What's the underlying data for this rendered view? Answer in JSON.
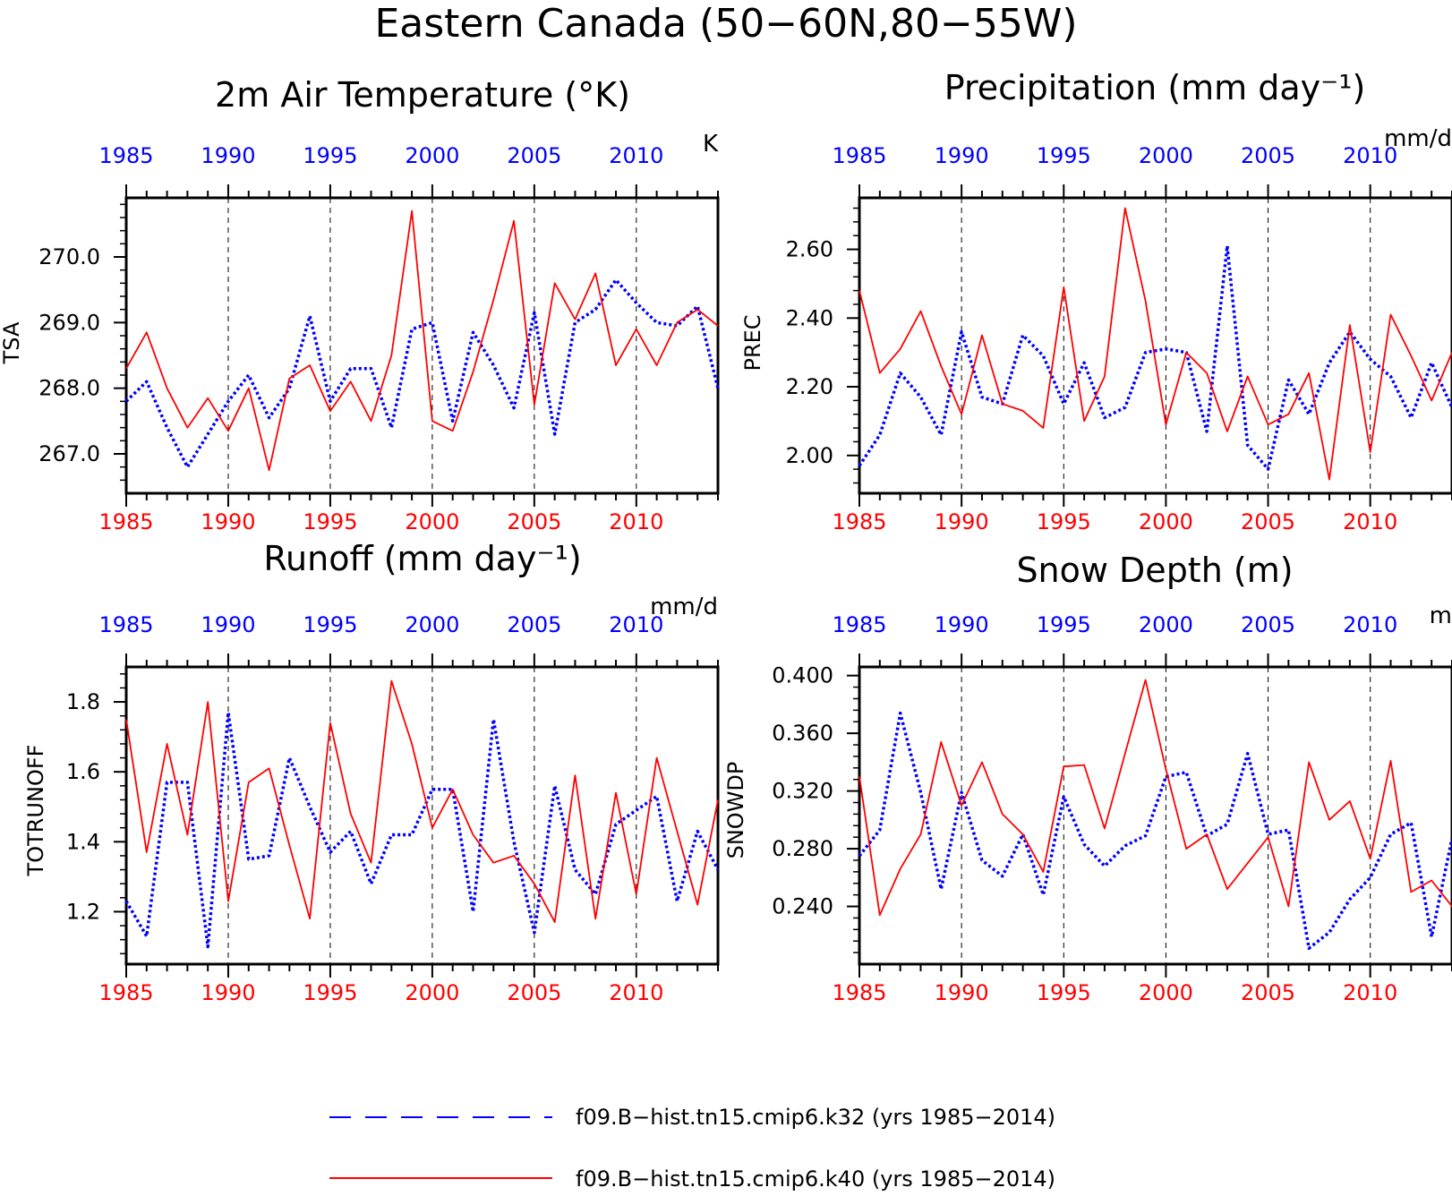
{
  "figure": {
    "title": "Eastern Canada (50−60N,80−55W)",
    "colors": {
      "k32": "#0000ff",
      "k40": "#ff0000",
      "axis": "#000000"
    }
  },
  "chart_data": [
    {
      "id": "tsa",
      "type": "line",
      "title": "2m Air Temperature (°K)",
      "ylabel": "TSA",
      "units": "K",
      "xlim": [
        1985,
        2014
      ],
      "ylim": [
        266.4,
        270.9
      ],
      "yticks": [
        267.0,
        268.0,
        269.0,
        270.0
      ],
      "ytick_labels": [
        "267.0",
        "268.0",
        "269.0",
        "270.0"
      ],
      "yminor_step": 0.2,
      "xticks": [
        1985,
        1990,
        1995,
        2000,
        2005,
        2010
      ],
      "x": [
        1985,
        1986,
        1987,
        1988,
        1989,
        1990,
        1991,
        1992,
        1993,
        1994,
        1995,
        1996,
        1997,
        1998,
        1999,
        2000,
        2001,
        2002,
        2003,
        2004,
        2005,
        2006,
        2007,
        2008,
        2009,
        2010,
        2011,
        2012,
        2013,
        2014
      ],
      "series": [
        {
          "name": "f09.B−hist.tn15.cmip6.k32 (yrs 1985−2014)",
          "key": "k32",
          "values": [
            267.8,
            268.1,
            267.4,
            266.8,
            267.3,
            267.8,
            268.2,
            267.55,
            268.0,
            269.1,
            267.8,
            268.3,
            268.3,
            267.4,
            268.9,
            269.0,
            267.5,
            268.85,
            268.35,
            267.7,
            269.15,
            267.3,
            269.0,
            269.2,
            269.65,
            269.3,
            269.0,
            268.95,
            269.25,
            268.0
          ]
        },
        {
          "name": "f09.B−hist.tn15.cmip6.k40 (yrs 1985−2014)",
          "key": "k40",
          "values": [
            268.3,
            268.85,
            268.0,
            267.4,
            267.85,
            267.35,
            268.0,
            266.75,
            268.15,
            268.35,
            267.65,
            268.1,
            267.5,
            268.5,
            270.7,
            267.5,
            267.35,
            268.25,
            269.35,
            270.55,
            267.75,
            269.6,
            269.05,
            269.75,
            268.35,
            268.9,
            268.35,
            269.0,
            269.2,
            268.95
          ]
        }
      ]
    },
    {
      "id": "prec",
      "type": "line",
      "title": "Precipitation (mm day⁻¹)",
      "ylabel": "PREC",
      "units": "mm/d",
      "xlim": [
        1985,
        2014
      ],
      "ylim": [
        1.89,
        2.75
      ],
      "yticks": [
        2.0,
        2.2,
        2.4,
        2.6
      ],
      "ytick_labels": [
        "2.00",
        "2.20",
        "2.40",
        "2.60"
      ],
      "yminor_step": 0.04,
      "xticks": [
        1985,
        1990,
        1995,
        2000,
        2005,
        2010
      ],
      "x": [
        1985,
        1986,
        1987,
        1988,
        1989,
        1990,
        1991,
        1992,
        1993,
        1994,
        1995,
        1996,
        1997,
        1998,
        1999,
        2000,
        2001,
        2002,
        2003,
        2004,
        2005,
        2006,
        2007,
        2008,
        2009,
        2010,
        2011,
        2012,
        2013,
        2014
      ],
      "series": [
        {
          "name": "f09.B−hist.tn15.cmip6.k32 (yrs 1985−2014)",
          "key": "k32",
          "values": [
            1.97,
            2.06,
            2.24,
            2.17,
            2.06,
            2.36,
            2.17,
            2.15,
            2.35,
            2.29,
            2.15,
            2.27,
            2.11,
            2.14,
            2.3,
            2.31,
            2.3,
            2.07,
            2.61,
            2.03,
            1.96,
            2.22,
            2.12,
            2.27,
            2.36,
            2.28,
            2.23,
            2.11,
            2.27,
            2.14
          ]
        },
        {
          "name": "f09.B−hist.tn15.cmip6.k40 (yrs 1985−2014)",
          "key": "k40",
          "values": [
            2.48,
            2.24,
            2.31,
            2.42,
            2.26,
            2.12,
            2.35,
            2.15,
            2.13,
            2.08,
            2.49,
            2.1,
            2.23,
            2.72,
            2.45,
            2.09,
            2.3,
            2.24,
            2.07,
            2.23,
            2.09,
            2.12,
            2.24,
            1.93,
            2.38,
            2.01,
            2.41,
            2.29,
            2.16,
            2.3
          ]
        }
      ]
    },
    {
      "id": "runoff",
      "type": "line",
      "title": "Runoff (mm day⁻¹)",
      "ylabel": "TOTRUNOFF",
      "units": "mm/d",
      "xlim": [
        1985,
        2014
      ],
      "ylim": [
        1.05,
        1.9
      ],
      "yticks": [
        1.2,
        1.4,
        1.6,
        1.8
      ],
      "ytick_labels": [
        "1.2",
        "1.4",
        "1.6",
        "1.8"
      ],
      "yminor_step": 0.04,
      "xticks": [
        1985,
        1990,
        1995,
        2000,
        2005,
        2010
      ],
      "x": [
        1985,
        1986,
        1987,
        1988,
        1989,
        1990,
        1991,
        1992,
        1993,
        1994,
        1995,
        1996,
        1997,
        1998,
        1999,
        2000,
        2001,
        2002,
        2003,
        2004,
        2005,
        2006,
        2007,
        2008,
        2009,
        2010,
        2011,
        2012,
        2013,
        2014
      ],
      "series": [
        {
          "name": "f09.B−hist.tn15.cmip6.k32 (yrs 1985−2014)",
          "key": "k32",
          "values": [
            1.23,
            1.13,
            1.57,
            1.57,
            1.1,
            1.77,
            1.35,
            1.36,
            1.64,
            1.5,
            1.37,
            1.43,
            1.28,
            1.42,
            1.42,
            1.55,
            1.55,
            1.2,
            1.75,
            1.4,
            1.14,
            1.56,
            1.32,
            1.25,
            1.45,
            1.49,
            1.53,
            1.23,
            1.43,
            1.32
          ]
        },
        {
          "name": "f09.B−hist.tn15.cmip6.k40 (yrs 1985−2014)",
          "key": "k40",
          "values": [
            1.75,
            1.37,
            1.68,
            1.42,
            1.8,
            1.23,
            1.57,
            1.61,
            1.39,
            1.18,
            1.74,
            1.48,
            1.34,
            1.86,
            1.68,
            1.44,
            1.55,
            1.42,
            1.34,
            1.36,
            1.28,
            1.17,
            1.59,
            1.18,
            1.54,
            1.25,
            1.64,
            1.43,
            1.22,
            1.52
          ]
        }
      ]
    },
    {
      "id": "snowdp",
      "type": "line",
      "title": "Snow Depth (m)",
      "ylabel": "SNOWDP",
      "units": "m",
      "xlim": [
        1985,
        2014
      ],
      "ylim": [
        0.2,
        0.406
      ],
      "yticks": [
        0.24,
        0.28,
        0.32,
        0.36,
        0.4
      ],
      "ytick_labels": [
        "0.240",
        "0.280",
        "0.320",
        "0.360",
        "0.400"
      ],
      "yminor_step": 0.008,
      "xticks": [
        1985,
        1990,
        1995,
        2000,
        2005,
        2010
      ],
      "x": [
        1985,
        1986,
        1987,
        1988,
        1989,
        1990,
        1991,
        1992,
        1993,
        1994,
        1995,
        1996,
        1997,
        1998,
        1999,
        2000,
        2001,
        2002,
        2003,
        2004,
        2005,
        2006,
        2007,
        2008,
        2009,
        2010,
        2011,
        2012,
        2013,
        2014
      ],
      "series": [
        {
          "name": "f09.B−hist.tn15.cmip6.k32 (yrs 1985−2014)",
          "key": "k32",
          "values": [
            0.275,
            0.293,
            0.374,
            0.319,
            0.252,
            0.319,
            0.272,
            0.261,
            0.29,
            0.248,
            0.316,
            0.283,
            0.268,
            0.282,
            0.289,
            0.33,
            0.333,
            0.289,
            0.297,
            0.346,
            0.29,
            0.293,
            0.211,
            0.222,
            0.245,
            0.26,
            0.29,
            0.298,
            0.219,
            0.287
          ]
        },
        {
          "name": "f09.B−hist.tn15.cmip6.k40 (yrs 1985−2014)",
          "key": "k40",
          "values": [
            0.33,
            0.234,
            0.266,
            0.29,
            0.354,
            0.31,
            0.34,
            0.304,
            0.29,
            0.264,
            0.337,
            0.338,
            0.294,
            0.346,
            0.397,
            0.335,
            0.28,
            0.29,
            0.252,
            0.27,
            0.288,
            0.24,
            0.34,
            0.3,
            0.313,
            0.273,
            0.341,
            0.25,
            0.258,
            0.24
          ]
        }
      ]
    }
  ],
  "legend": [
    {
      "key": "k32",
      "style": "dashed",
      "label": "f09.B−hist.tn15.cmip6.k32 (yrs 1985−2014)"
    },
    {
      "key": "k40",
      "style": "solid",
      "label": "f09.B−hist.tn15.cmip6.k40 (yrs 1985−2014)"
    }
  ]
}
